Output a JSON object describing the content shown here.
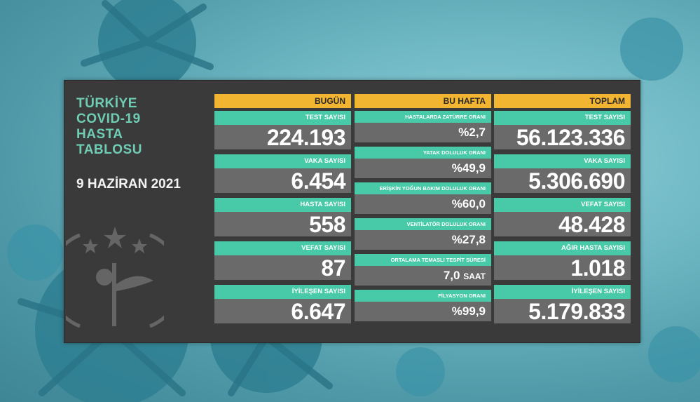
{
  "header": {
    "title_lines": [
      "TÜRKİYE",
      "COVID-19",
      "HASTA",
      "TABLOSU"
    ],
    "date": "9 HAZİRAN 2021"
  },
  "today": {
    "heading": "BUGÜN",
    "items": [
      {
        "label": "TEST SAYISI",
        "value": "224.193"
      },
      {
        "label": "VAKA SAYISI",
        "value": "6.454"
      },
      {
        "label": "HASTA SAYISI",
        "value": "558"
      },
      {
        "label": "VEFAT SAYISI",
        "value": "87"
      },
      {
        "label": "İYİLEŞEN SAYISI",
        "value": "6.647"
      }
    ]
  },
  "week": {
    "heading": "BU HAFTA",
    "items": [
      {
        "label": "HASTALARDA ZATÜRRE ORANI",
        "value": "%2,7",
        "unit": ""
      },
      {
        "label": "YATAK DOLULUK ORANI",
        "value": "%49,9",
        "unit": ""
      },
      {
        "label": "ERİŞKİN YOĞUN BAKIM DOLULUK ORANI",
        "value": "%60,0",
        "unit": ""
      },
      {
        "label": "VENTİLATÖR DOLULUK ORANI",
        "value": "%27,8",
        "unit": ""
      },
      {
        "label": "ORTALAMA TEMASLI TESPİT SÜRESİ",
        "value": "7,0",
        "unit": "SAAT"
      },
      {
        "label": "FİLYASYON ORANI",
        "value": "%99,9",
        "unit": ""
      }
    ]
  },
  "total": {
    "heading": "TOPLAM",
    "items": [
      {
        "label": "TEST SAYISI",
        "value": "56.123.336"
      },
      {
        "label": "VAKA SAYISI",
        "value": "5.306.690"
      },
      {
        "label": "VEFAT SAYISI",
        "value": "48.428"
      },
      {
        "label": "AĞIR HASTA SAYISI",
        "value": "1.018"
      },
      {
        "label": "İYİLEŞEN SAYISI",
        "value": "5.179.833"
      }
    ]
  },
  "colors": {
    "accent_yellow": "#f2b531",
    "accent_teal": "#48c9a8",
    "title_green": "#6fcdb4",
    "panel_bg": "#3a3a3a",
    "value_bg": "#6a6a6a"
  },
  "icons": [
    "virus-background-illustration",
    "ministry-emblem"
  ]
}
